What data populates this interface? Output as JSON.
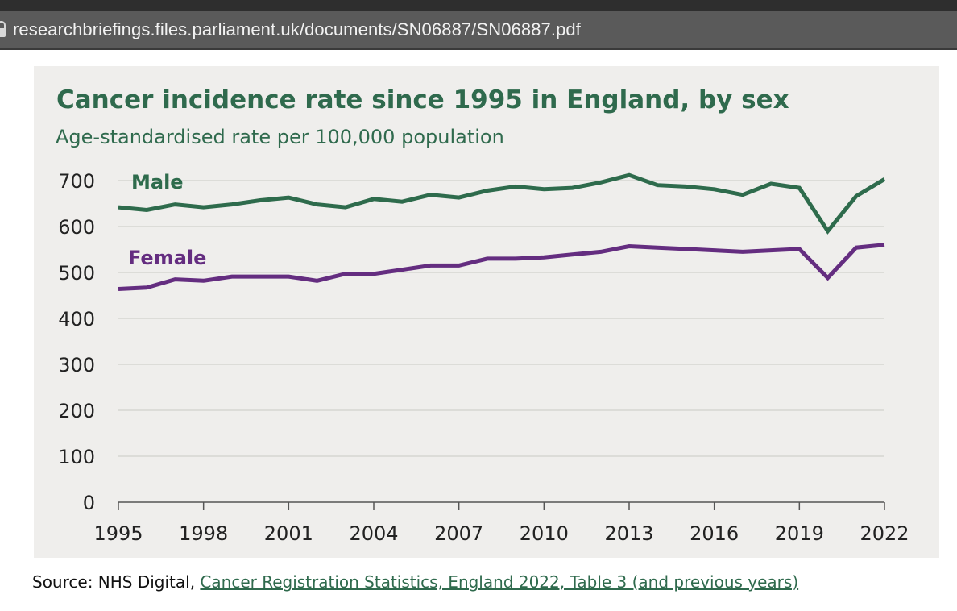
{
  "browser": {
    "url": "researchbriefings.files.parliament.uk/documents/SN06887/SN06887.pdf"
  },
  "chart_data": {
    "type": "line",
    "title": "Cancer incidence rate since 1995 in England, by sex",
    "subtitle": "Age-standardised rate per 100,000 population",
    "xlabel": "",
    "ylabel": "",
    "ylim": [
      0,
      700
    ],
    "xlim": [
      1995,
      2022
    ],
    "y_ticks": [
      0,
      100,
      200,
      300,
      400,
      500,
      600,
      700
    ],
    "x_tick_labels": [
      "1995",
      "1998",
      "2001",
      "2004",
      "2007",
      "2010",
      "2013",
      "2016",
      "2019",
      "2022"
    ],
    "grid": true,
    "legend": "inline labels",
    "x": [
      1995,
      1996,
      1997,
      1998,
      1999,
      2000,
      2001,
      2002,
      2003,
      2004,
      2005,
      2006,
      2007,
      2008,
      2009,
      2010,
      2011,
      2012,
      2013,
      2014,
      2015,
      2016,
      2017,
      2018,
      2019,
      2020,
      2021,
      2022
    ],
    "series": [
      {
        "name": "Male",
        "color": "#2e6b4c",
        "values": [
          642,
          636,
          648,
          642,
          648,
          657,
          663,
          648,
          642,
          660,
          654,
          669,
          663,
          678,
          687,
          681,
          684,
          696,
          712,
          690,
          687,
          681,
          669,
          693,
          684,
          590,
          666,
          703
        ]
      },
      {
        "name": "Female",
        "color": "#642d80",
        "values": [
          464,
          467,
          485,
          482,
          491,
          491,
          491,
          482,
          497,
          497,
          506,
          515,
          515,
          530,
          530,
          533,
          539,
          545,
          557,
          554,
          551,
          548,
          545,
          548,
          551,
          488,
          554,
          560
        ]
      }
    ]
  },
  "source": {
    "prefix": "Source:  NHS Digital, ",
    "link_text": "Cancer Registration Statistics, England 2022, Table 3 (and previous years)"
  }
}
